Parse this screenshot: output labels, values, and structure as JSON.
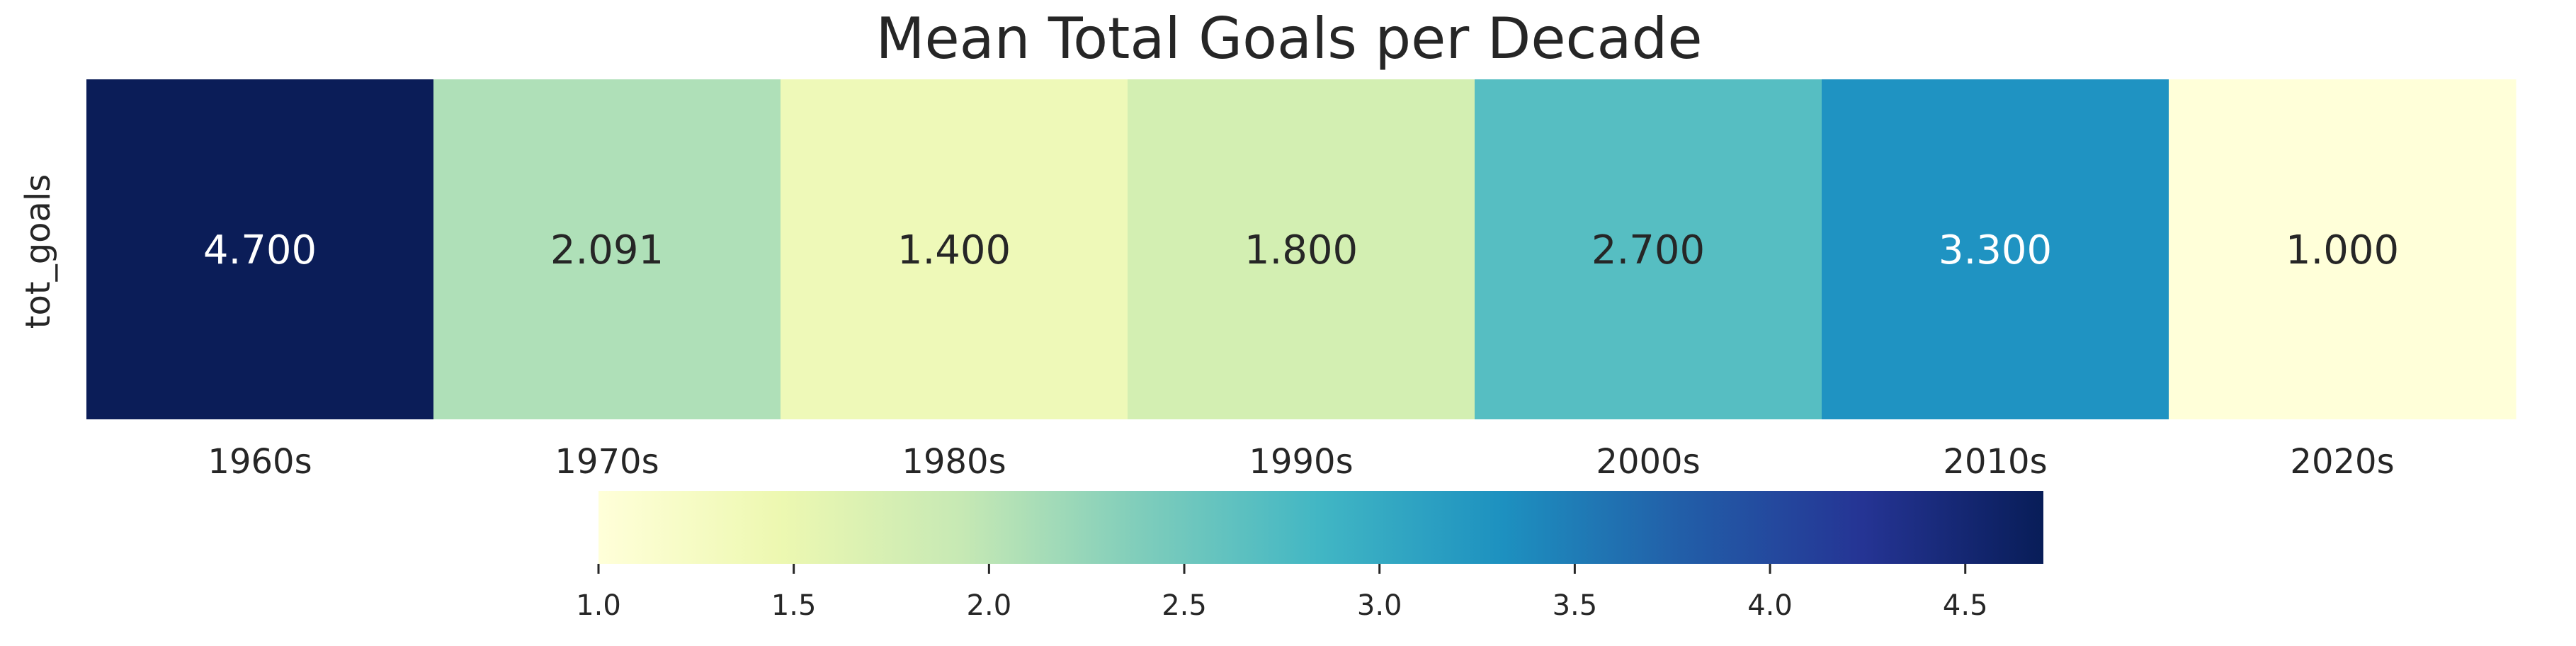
{
  "chart_data": {
    "type": "heatmap",
    "title": "Mean Total Goals per Decade",
    "xlabel": "",
    "ylabel": "",
    "rows": [
      "tot_goals"
    ],
    "categories": [
      "1960s",
      "1970s",
      "1980s",
      "1990s",
      "2000s",
      "2010s",
      "2020s"
    ],
    "values": [
      4.7,
      2.091,
      1.4,
      1.8,
      2.7,
      3.3,
      1.0
    ],
    "cell_labels": [
      "4.700",
      "2.091",
      "1.400",
      "1.800",
      "2.700",
      "3.300",
      "1.000"
    ],
    "colorscale": "YlGnBu",
    "colorbar": {
      "orientation": "horizontal",
      "range": [
        1.0,
        4.7
      ],
      "ticks": [
        1.0,
        1.5,
        2.0,
        2.5,
        3.0,
        3.5,
        4.0,
        4.5
      ],
      "tick_labels": [
        "1.0",
        "1.5",
        "2.0",
        "2.5",
        "3.0",
        "3.5",
        "4.0",
        "4.5"
      ]
    },
    "cell_colors": [
      "#0b1d58",
      "#afe0b8",
      "#eef9b8",
      "#d3efb2",
      "#56bec2",
      "#1f93c2",
      "#ffffd9"
    ],
    "cell_text_colors": [
      "#ffffff",
      "#262626",
      "#262626",
      "#262626",
      "#262626",
      "#ffffff",
      "#262626"
    ],
    "grid": false
  }
}
